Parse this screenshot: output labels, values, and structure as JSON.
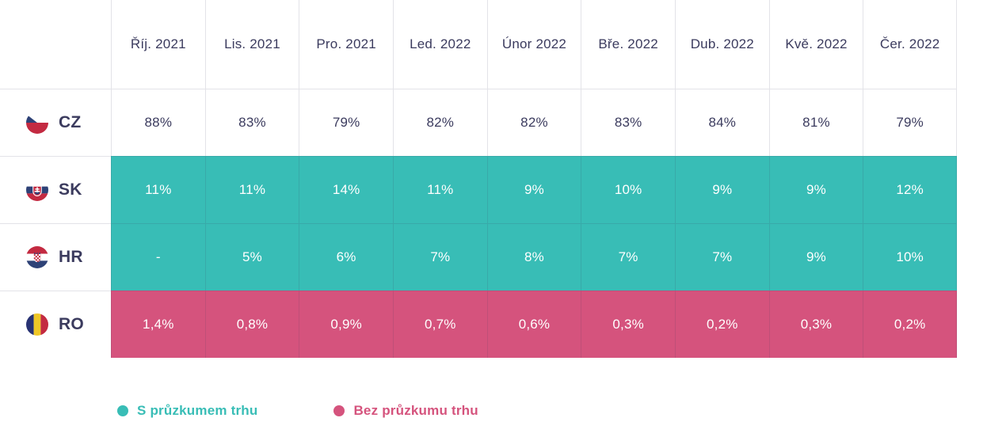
{
  "columns": [
    "Říj. 2021",
    "Lis. 2021",
    "Pro. 2021",
    "Led. 2022",
    "Únor 2022",
    "Bře. 2022",
    "Dub. 2022",
    "Kvě. 2022",
    "Čer. 2022"
  ],
  "rows": [
    {
      "code": "CZ",
      "flag_icon": "czech-flag-icon",
      "style": "plain",
      "values": [
        "88%",
        "83%",
        "79%",
        "82%",
        "82%",
        "83%",
        "84%",
        "81%",
        "79%"
      ]
    },
    {
      "code": "SK",
      "flag_icon": "slovakia-flag-icon",
      "style": "teal",
      "values": [
        "11%",
        "11%",
        "14%",
        "11%",
        "9%",
        "10%",
        "9%",
        "9%",
        "12%"
      ]
    },
    {
      "code": "HR",
      "flag_icon": "croatia-flag-icon",
      "style": "teal",
      "values": [
        "-",
        "5%",
        "6%",
        "7%",
        "8%",
        "7%",
        "7%",
        "9%",
        "10%"
      ]
    },
    {
      "code": "RO",
      "flag_icon": "romania-flag-icon",
      "style": "pink",
      "values": [
        "1,4%",
        "0,8%",
        "0,9%",
        "0,7%",
        "0,6%",
        "0,3%",
        "0,2%",
        "0,3%",
        "0,2%"
      ]
    }
  ],
  "legend": [
    {
      "label": "S průzkumem trhu",
      "color": "#38bdb6"
    },
    {
      "label": "Bez průzkumu trhu",
      "color": "#d5537d"
    }
  ],
  "colors": {
    "teal": "#38bdb6",
    "pink": "#d5537d",
    "text": "#3b3b5e",
    "grid_line": "#e4e4ea"
  },
  "chart_data": {
    "type": "table",
    "title": "",
    "categories": [
      "Říj. 2021",
      "Lis. 2021",
      "Pro. 2021",
      "Led. 2022",
      "Únor 2022",
      "Bře. 2022",
      "Dub. 2022",
      "Kvě. 2022",
      "Čer. 2022"
    ],
    "series": [
      {
        "name": "CZ",
        "unit": "%",
        "group": "",
        "values": [
          88,
          83,
          79,
          82,
          82,
          83,
          84,
          81,
          79
        ]
      },
      {
        "name": "SK",
        "unit": "%",
        "group": "S průzkumem trhu",
        "values": [
          11,
          11,
          14,
          11,
          9,
          10,
          9,
          9,
          12
        ]
      },
      {
        "name": "HR",
        "unit": "%",
        "group": "S průzkumem trhu",
        "values": [
          null,
          5,
          6,
          7,
          8,
          7,
          7,
          9,
          10
        ]
      },
      {
        "name": "RO",
        "unit": "%",
        "group": "Bez průzkumu trhu",
        "values": [
          1.4,
          0.8,
          0.9,
          0.7,
          0.6,
          0.3,
          0.2,
          0.3,
          0.2
        ]
      }
    ],
    "legend_entries": [
      "S průzkumem trhu",
      "Bez průzkumu trhu"
    ],
    "legend_position": "bottom-left",
    "grid": true
  }
}
